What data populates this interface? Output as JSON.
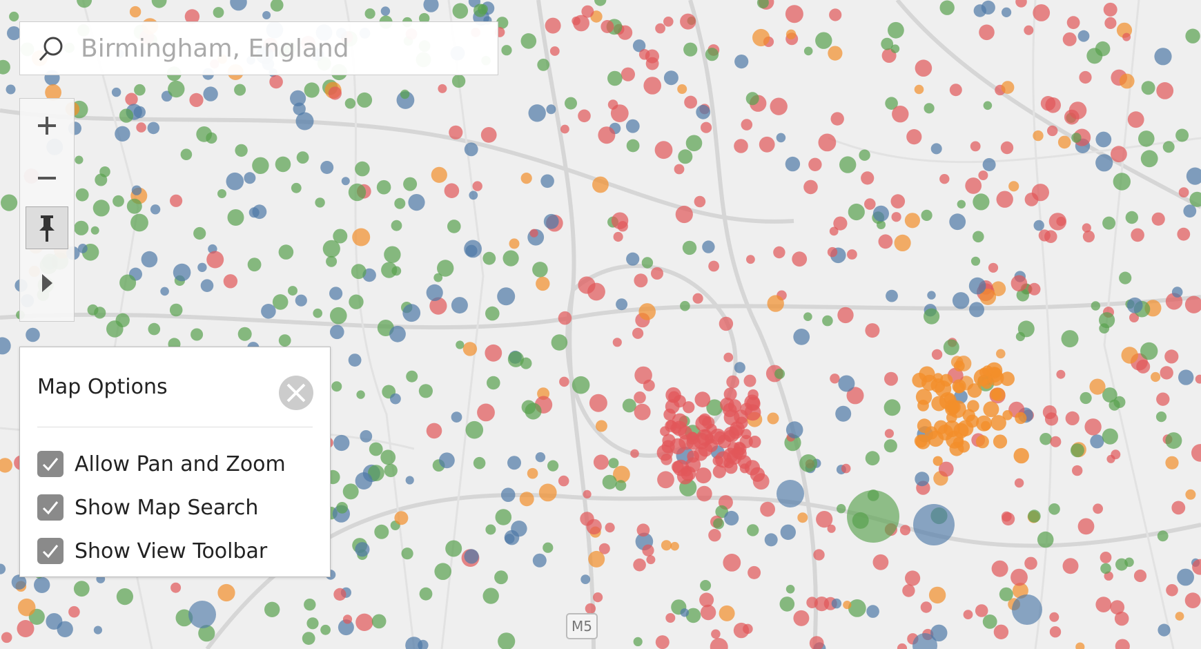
{
  "search": {
    "placeholder": "Birmingham, England"
  },
  "map_options": {
    "title": "Map Options",
    "options": [
      {
        "label": "Allow Pan and Zoom",
        "checked": true
      },
      {
        "label": "Show Map Search",
        "checked": true
      },
      {
        "label": "Show View Toolbar",
        "checked": true
      }
    ]
  },
  "map": {
    "road_labels": [
      "M5"
    ]
  }
}
